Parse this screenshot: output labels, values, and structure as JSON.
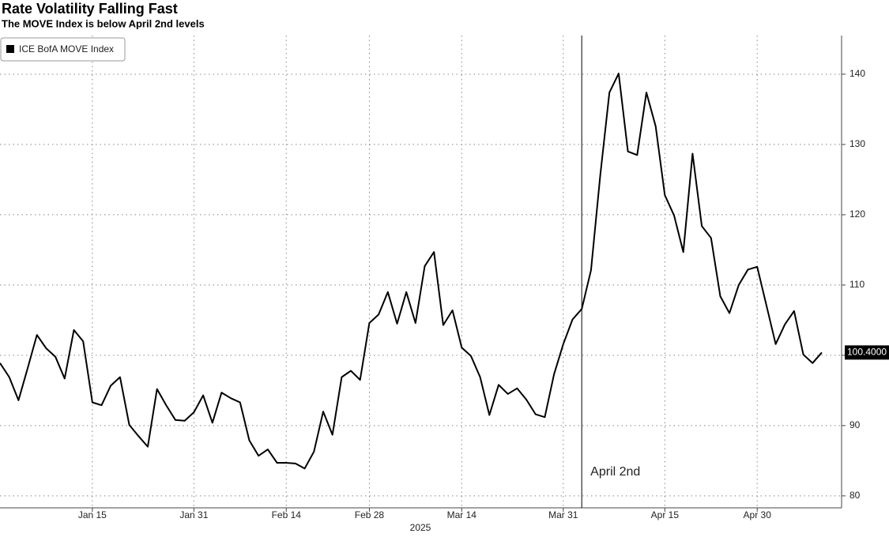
{
  "chart_data": {
    "type": "line",
    "title": "Rate Volatility Falling Fast",
    "subtitle": "The MOVE Index is below April 2nd levels",
    "xlabel": "2025",
    "categories": [
      null,
      null,
      null,
      null,
      null,
      null,
      null,
      null,
      null,
      null,
      "Jan 15",
      null,
      null,
      null,
      null,
      null,
      null,
      null,
      null,
      null,
      null,
      "Jan 31",
      null,
      null,
      null,
      null,
      null,
      null,
      null,
      null,
      null,
      "Feb 14",
      null,
      null,
      null,
      null,
      null,
      null,
      null,
      null,
      "Feb 28",
      null,
      null,
      null,
      null,
      null,
      null,
      null,
      null,
      null,
      "Mar 14",
      null,
      null,
      null,
      null,
      null,
      null,
      null,
      null,
      null,
      null,
      "Mar 31",
      null,
      null,
      null,
      null,
      null,
      null,
      null,
      null,
      null,
      null,
      "Apr 15",
      null,
      null,
      null,
      null,
      null,
      null,
      null,
      null,
      null,
      "Apr 30",
      null,
      null,
      null,
      null,
      null,
      null,
      null
    ],
    "series": [
      {
        "name": "ICE BofA MOVE Index",
        "color": "#000000",
        "values": [
          98.9,
          96.9,
          93.6,
          98.2,
          102.9,
          101.0,
          99.8,
          96.7,
          103.6,
          102.0,
          93.3,
          92.9,
          95.7,
          96.9,
          90.1,
          88.5,
          87.0,
          95.2,
          92.9,
          90.8,
          90.7,
          91.9,
          94.3,
          90.4,
          94.7,
          93.9,
          93.3,
          87.9,
          85.7,
          86.6,
          84.7,
          84.7,
          84.6,
          83.9,
          86.3,
          92.0,
          88.7,
          96.9,
          97.8,
          96.5,
          104.6,
          105.8,
          109.0,
          104.5,
          109.0,
          104.6,
          112.7,
          114.7,
          104.3,
          106.4,
          101.1,
          99.9,
          96.9,
          91.5,
          95.8,
          94.5,
          95.3,
          93.7,
          91.6,
          91.2,
          97.3,
          101.6,
          105.1,
          106.6,
          112.1,
          125.6,
          137.4,
          140.1,
          129.0,
          128.5,
          137.4,
          132.6,
          122.8,
          119.9,
          114.7,
          128.7,
          118.4,
          116.7,
          108.4,
          106.0,
          110.0,
          112.2,
          112.6,
          107.1,
          101.6,
          104.4,
          106.3,
          100.1,
          98.9,
          100.4
        ],
        "last_value_label": "100.4000"
      }
    ],
    "ylim": [
      78.3,
      145.5
    ],
    "yticks": [
      80,
      90,
      100,
      110,
      120,
      130,
      140
    ],
    "grid": true,
    "legend": "top-left",
    "annotations": [
      {
        "text": "April 2nd",
        "x": 63
      }
    ]
  }
}
